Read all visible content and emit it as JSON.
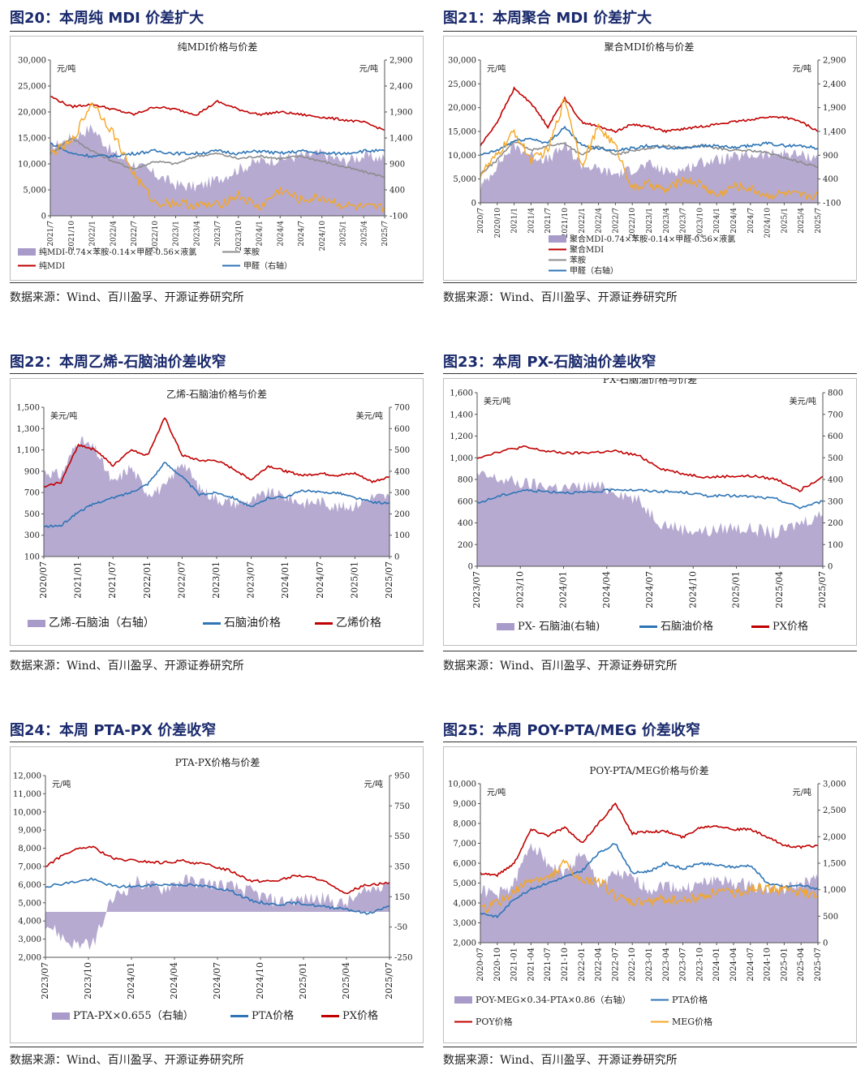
{
  "source_text": "数据来源：Wind、百川盈孚、开源证券研究所",
  "colors": {
    "purple": "#a99bc9",
    "red": "#c00000",
    "blue": "#2e75b6",
    "gray": "#8c8c8c",
    "orange": "#f5a623",
    "title": "#1a2a6c"
  },
  "panels": [
    {
      "id": "fig20",
      "title": "图20：本周纯 MDI 价差扩大",
      "chart_data": {
        "type": "line",
        "title": "纯MDI价格与价差",
        "left_unit": "元/吨",
        "right_unit": "元/吨",
        "ylim": [
          0,
          30000
        ],
        "y2lim": [
          -100,
          2900
        ],
        "yticks": [
          "0",
          "5,000",
          "10,000",
          "15,000",
          "20,000",
          "25,000",
          "30,000"
        ],
        "y2ticks": [
          "-100",
          "400",
          "900",
          "1,400",
          "1,900",
          "2,400",
          "2,900"
        ],
        "xticks": [
          "2021/7",
          "2021/10",
          "2022/1",
          "2022/4",
          "2022/7",
          "2022/10",
          "2023/1",
          "2023/4",
          "2023/7",
          "2023/10",
          "2024/1",
          "2024/4",
          "2024/7",
          "2024/10",
          "2025/1",
          "2025/4",
          "2025/7"
        ],
        "legend_placement": "bottom",
        "series": [
          {
            "name": "纯MDI-0.74×苯胺-0.14×甲醛-0.56×液氯",
            "kind": "area",
            "axis": "left",
            "color": "#a99bc9",
            "values": [
              13000,
              15000,
              17000,
              12000,
              10000,
              8000,
              6000,
              5500,
              7000,
              9000,
              10500,
              11000,
              11500,
              12000,
              10500,
              11500,
              11000
            ]
          },
          {
            "name": "苯胺",
            "kind": "line",
            "axis": "left",
            "color": "#8c8c8c",
            "values": [
              12000,
              15000,
              12500,
              10500,
              9000,
              10500,
              10000,
              11500,
              12000,
              11000,
              11500,
              11000,
              11500,
              10500,
              9500,
              8500,
              7500
            ]
          },
          {
            "name": "纯MDI",
            "kind": "line",
            "axis": "left",
            "color": "#c00000",
            "values": [
              23000,
              21000,
              21500,
              20500,
              19500,
              21000,
              20500,
              19500,
              22000,
              20500,
              19500,
              20000,
              19500,
              19000,
              18500,
              18000,
              16500
            ]
          },
          {
            "name": "甲醛（右轴）",
            "kind": "line",
            "axis": "right",
            "color": "#2e75b6",
            "values": [
              1300,
              1100,
              1050,
              1050,
              1100,
              1150,
              1100,
              1100,
              1150,
              1100,
              1150,
              1100,
              1150,
              1100,
              1100,
              1150,
              1150
            ]
          },
          {
            "name": "",
            "kind": "line",
            "axis": "left",
            "color": "#f5a623",
            "legend": false,
            "values": [
              12000,
              14000,
              22000,
              16000,
              8000,
              2500,
              2500,
              2000,
              2000,
              4000,
              1500,
              5000,
              3000,
              3500,
              2000,
              1500,
              1500
            ]
          }
        ]
      }
    },
    {
      "id": "fig21",
      "title": "图21：本周聚合 MDI 价差扩大",
      "chart_data": {
        "type": "line",
        "title": "聚合MDI价格与价差",
        "left_unit": "元/吨",
        "right_unit": "元/吨",
        "ylim": [
          0,
          30000
        ],
        "y2lim": [
          -100,
          2900
        ],
        "yticks": [
          "0",
          "5,000",
          "10,000",
          "15,000",
          "20,000",
          "25,000",
          "30,000"
        ],
        "y2ticks": [
          "-100",
          "400",
          "900",
          "1,400",
          "1,900",
          "2,400",
          "2,900"
        ],
        "xticks": [
          "2020/7",
          "2020/10",
          "2021/1",
          "2021/4",
          "2021/7",
          "2021/10",
          "2022/1",
          "2022/4",
          "2022/7",
          "2022/10",
          "2023/1",
          "2023/4",
          "2023/7",
          "2023/10",
          "2024/1",
          "2024/4",
          "2024/7",
          "2024/10",
          "2025/1",
          "2025/4",
          "2025/7"
        ],
        "legend_placement": "bottom",
        "series": [
          {
            "name": "聚合MDI-0.74×苯胺-0.14×甲醛-0.56×液氯",
            "kind": "area",
            "axis": "left",
            "color": "#a99bc9",
            "values": [
              3000,
              8000,
              12000,
              10000,
              9000,
              12000,
              8000,
              7000,
              6000,
              7000,
              8000,
              6500,
              7000,
              8500,
              9000,
              9500,
              10000,
              10000,
              10500,
              10000,
              9500
            ]
          },
          {
            "name": "聚合MDI",
            "kind": "line",
            "axis": "left",
            "color": "#c00000",
            "values": [
              12000,
              17000,
              24000,
              21000,
              16000,
              22000,
              17000,
              16000,
              15000,
              16500,
              16000,
              15000,
              15500,
              16000,
              16500,
              17000,
              17500,
              18000,
              18000,
              17000,
              15000
            ]
          },
          {
            "name": "苯胺",
            "kind": "line",
            "axis": "left",
            "color": "#8c8c8c",
            "values": [
              6000,
              9000,
              13000,
              11000,
              12000,
              12500,
              10000,
              12000,
              10000,
              11000,
              11500,
              12000,
              11500,
              12000,
              11500,
              11000,
              11000,
              10500,
              9500,
              8500,
              7500
            ]
          },
          {
            "name": "甲醛（右轴）",
            "kind": "line",
            "axis": "right",
            "color": "#2e75b6",
            "values": [
              900,
              1000,
              1200,
              1250,
              1150,
              1500,
              1100,
              1050,
              1000,
              1050,
              1100,
              1050,
              1050,
              1100,
              1100,
              1050,
              1100,
              1150,
              1100,
              1100,
              1050
            ]
          },
          {
            "name": "",
            "kind": "line",
            "axis": "left",
            "color": "#f5a623",
            "legend": false,
            "values": [
              6000,
              10000,
              15000,
              9000,
              11000,
              22000,
              8000,
              16000,
              12000,
              3000,
              4000,
              2500,
              5000,
              4000,
              1500,
              3500,
              3000,
              1500,
              2000,
              1500,
              1500
            ]
          }
        ]
      }
    },
    {
      "id": "fig22",
      "title": "图22：本周乙烯-石脑油价差收窄",
      "chart_data": {
        "type": "line",
        "title": "乙烯-石脑油价格与价差",
        "left_unit": "美元/吨",
        "right_unit": "美元/吨",
        "ylim": [
          100,
          1500
        ],
        "y2lim": [
          0,
          700
        ],
        "yticks": [
          "100",
          "300",
          "500",
          "700",
          "900",
          "1,100",
          "1,300",
          "1,500"
        ],
        "y2ticks": [
          "0",
          "100",
          "200",
          "300",
          "400",
          "500",
          "600",
          "700"
        ],
        "xticks": [
          "2020/07",
          "2021/01",
          "2021/07",
          "2022/01",
          "2022/07",
          "2023/01",
          "2023/07",
          "2024/01",
          "2024/07",
          "2025/01",
          "2025/07"
        ],
        "legend_placement": "bottom",
        "series": [
          {
            "name": "乙烯-石脑油（右轴）",
            "kind": "area",
            "axis": "right",
            "color": "#a99bc9",
            "values": [
              400,
              380,
              550,
              500,
              340,
              420,
              300,
              320,
              450,
              320,
              270,
              250,
              260,
              300,
              280,
              250,
              260,
              230,
              240,
              280,
              280
            ]
          },
          {
            "name": "石脑油价格",
            "kind": "line",
            "axis": "left",
            "color": "#2e75b6",
            "values": [
              380,
              390,
              520,
              600,
              650,
              700,
              780,
              980,
              850,
              680,
              700,
              650,
              560,
              650,
              660,
              720,
              700,
              700,
              650,
              610,
              600
            ]
          },
          {
            "name": "乙烯价格",
            "kind": "line",
            "axis": "left",
            "color": "#c00000",
            "values": [
              750,
              800,
              1150,
              1100,
              950,
              1100,
              1050,
              1400,
              1050,
              1000,
              1000,
              920,
              820,
              950,
              900,
              860,
              880,
              860,
              880,
              800,
              850
            ]
          }
        ]
      }
    },
    {
      "id": "fig23",
      "title": "图23：本周 PX-石脑油价差收窄",
      "chart_data": {
        "type": "line",
        "title": "PX-石脑油价格与价差",
        "left_unit": "美元/吨",
        "right_unit": "美元/吨",
        "ylim": [
          0,
          1600
        ],
        "y2lim": [
          0,
          800
        ],
        "yticks": [
          "0",
          "200",
          "400",
          "600",
          "800",
          "1,000",
          "1,200",
          "1,400",
          "1,600"
        ],
        "y2ticks": [
          "0",
          "100",
          "200",
          "300",
          "400",
          "500",
          "600",
          "700",
          "800"
        ],
        "xticks": [
          "2023/07",
          "2023/10",
          "2024/01",
          "2024/04",
          "2024/07",
          "2024/10",
          "2025/01",
          "2025/04",
          "2025/07"
        ],
        "legend_placement": "bottom",
        "series": [
          {
            "name": "PX- 石脑油(右轴)",
            "kind": "area",
            "axis": "right",
            "color": "#a99bc9",
            "values": [
              420,
              400,
              380,
              370,
              360,
              370,
              350,
              300,
              200,
              170,
              160,
              180,
              170,
              150,
              200,
              240
            ]
          },
          {
            "name": "石脑油价格",
            "kind": "line",
            "axis": "left",
            "color": "#2e75b6",
            "values": [
              580,
              650,
              700,
              690,
              680,
              680,
              710,
              700,
              690,
              680,
              650,
              650,
              640,
              620,
              540,
              600
            ]
          },
          {
            "name": "PX价格",
            "kind": "line",
            "axis": "left",
            "color": "#c00000",
            "values": [
              1000,
              1060,
              1100,
              1060,
              1040,
              1050,
              1060,
              1020,
              900,
              850,
              820,
              830,
              830,
              800,
              700,
              830
            ]
          }
        ]
      }
    },
    {
      "id": "fig24",
      "title": "图24：本周 PTA-PX 价差收窄",
      "chart_data": {
        "type": "line",
        "title": "PTA-PX价格与价差",
        "left_unit": "元/吨",
        "right_unit": "元/吨",
        "ylim": [
          2000,
          12000
        ],
        "y2lim": [
          -250,
          950
        ],
        "yticks": [
          "2,000",
          "3,000",
          "4,000",
          "5,000",
          "6,000",
          "7,000",
          "8,000",
          "9,000",
          "10,000",
          "11,000",
          "12,000"
        ],
        "y2ticks": [
          "-250",
          "-50",
          "150",
          "350",
          "550",
          "750",
          "950"
        ],
        "xticks": [
          "2023/07",
          "2023/10",
          "2024/01",
          "2024/04",
          "2024/07",
          "2024/10",
          "2025/01",
          "2025/04",
          "2025/07"
        ],
        "legend_placement": "bottom",
        "series": [
          {
            "name": "PTA-PX×0.655（右轴）",
            "kind": "area",
            "axis": "right",
            "color": "#a99bc9",
            "baseline": 50,
            "values": [
              -20,
              -150,
              -180,
              150,
              250,
              200,
              260,
              240,
              220,
              180,
              120,
              130,
              140,
              100,
              180,
              260
            ]
          },
          {
            "name": "PTA价格",
            "kind": "line",
            "axis": "left",
            "color": "#2e75b6",
            "values": [
              5900,
              6100,
              6300,
              5900,
              5900,
              6000,
              6000,
              5900,
              5700,
              5100,
              4900,
              5000,
              4800,
              4700,
              4400,
              4800
            ]
          },
          {
            "name": "PX价格",
            "kind": "line",
            "axis": "left",
            "color": "#c00000",
            "values": [
              7000,
              7800,
              8100,
              7400,
              7300,
              7200,
              7300,
              7100,
              6800,
              6200,
              6200,
              6500,
              6300,
              5500,
              6000,
              6100
            ]
          }
        ]
      }
    },
    {
      "id": "fig25",
      "title": "图25：本周 POY-PTA/MEG 价差收窄",
      "chart_data": {
        "type": "line",
        "title": "POY-PTA/MEG价格与价差",
        "left_unit": "元/吨",
        "right_unit": "元/吨",
        "ylim": [
          2000,
          10000
        ],
        "y2lim": [
          0,
          3000
        ],
        "yticks": [
          "2,000",
          "3,000",
          "4,000",
          "5,000",
          "6,000",
          "7,000",
          "8,000",
          "9,000",
          "10,000"
        ],
        "y2ticks": [
          "0",
          "500",
          "1,000",
          "1,500",
          "2,000",
          "2,500",
          "3,000"
        ],
        "xticks": [
          "2020-07",
          "2020-10",
          "2021-01",
          "2021-04",
          "2021-07",
          "2021-10",
          "2022-01",
          "2022-04",
          "2022-07",
          "2022-10",
          "2023-01",
          "2023-04",
          "2023-07",
          "2023-10",
          "2024-01",
          "2024-04",
          "2024-07",
          "2024-10",
          "2025-01",
          "2025-04",
          "2025-07"
        ],
        "legend_placement": "bottom",
        "series": [
          {
            "name": "POY-MEG×0.34-PTA×0.86（右轴）",
            "kind": "area",
            "axis": "right",
            "color": "#a99bc9",
            "values": [
              1000,
              900,
              1100,
              1900,
              1500,
              1300,
              1700,
              1100,
              1300,
              1200,
              1000,
              1100,
              1000,
              1100,
              1200,
              1100,
              1100,
              1000,
              1000,
              1100,
              1200
            ]
          },
          {
            "name": "PTA价格",
            "kind": "line",
            "axis": "left",
            "color": "#2e75b6",
            "values": [
              3500,
              3300,
              4200,
              4700,
              5000,
              5300,
              5600,
              6500,
              7000,
              5500,
              5600,
              6000,
              5700,
              6000,
              5900,
              5800,
              5900,
              5000,
              4800,
              4900,
              4700
            ]
          },
          {
            "name": "POY价格",
            "kind": "line",
            "axis": "left",
            "color": "#c00000",
            "values": [
              5500,
              5400,
              6000,
              7700,
              7400,
              7800,
              7000,
              8000,
              9000,
              7500,
              7600,
              7600,
              7300,
              7800,
              7900,
              7700,
              7700,
              7300,
              6900,
              6800,
              6900
            ]
          },
          {
            "name": "MEG价格",
            "kind": "line",
            "axis": "left",
            "color": "#f5a623",
            "values": [
              3600,
              4000,
              4500,
              5200,
              5200,
              6000,
              5000,
              5200,
              4300,
              4000,
              4100,
              4200,
              4100,
              4300,
              4600,
              4500,
              4700,
              4700,
              4700,
              4500,
              4400
            ]
          }
        ]
      }
    }
  ]
}
